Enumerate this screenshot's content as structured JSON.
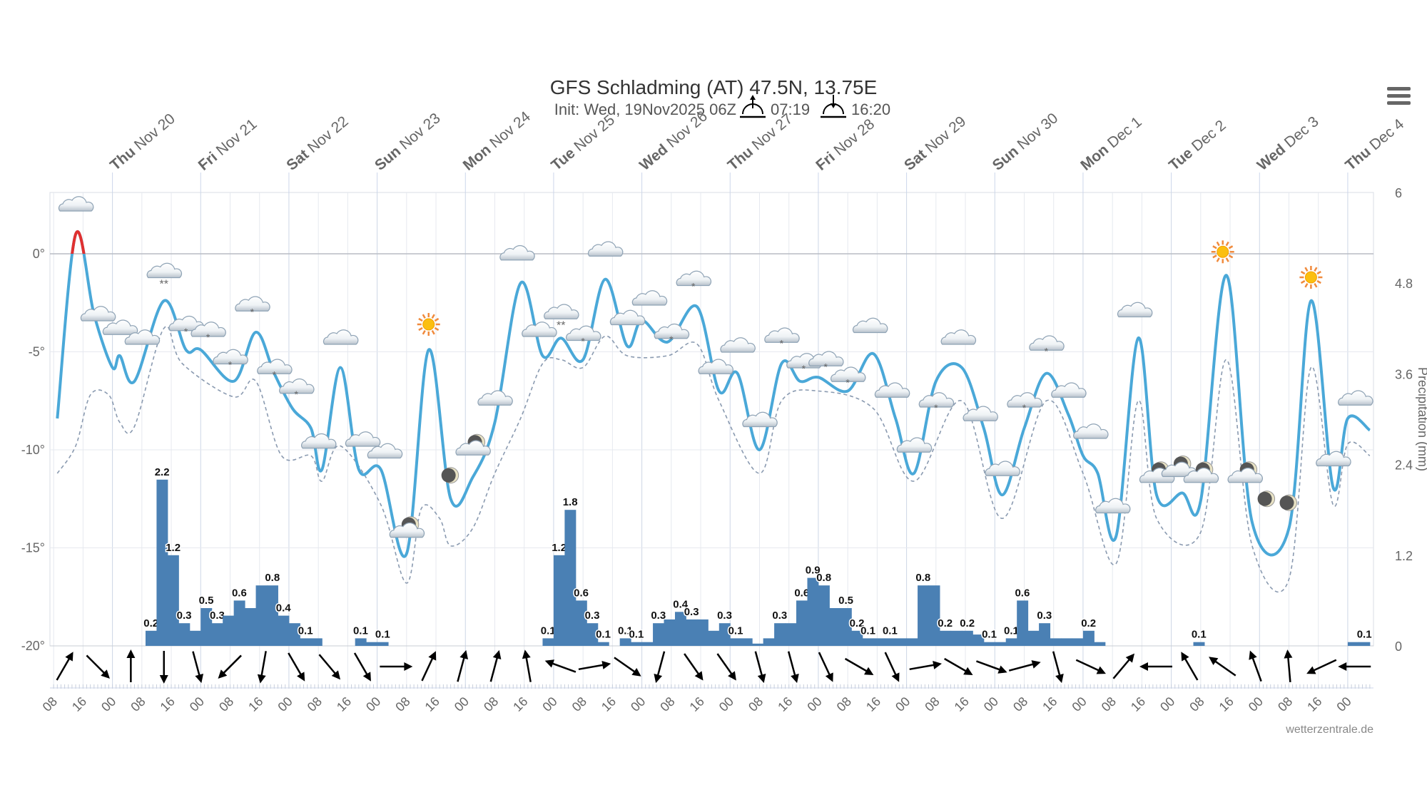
{
  "header": {
    "title": "GFS Schladming (AT) 47.5N, 13.75E",
    "init": "Init: Wed, 19Nov2025 06Z",
    "sunrise": "07:19",
    "sunset": "16:20",
    "menu_icon": "hamburger-menu-icon"
  },
  "watermark": "wetterzentrale.de",
  "colors": {
    "temperature": "#4aa8d8",
    "above_zero": "#e03030",
    "dewpoint": "#8a9ab0",
    "precip": "#4a80b4"
  },
  "chart_data": {
    "type": "line",
    "title": "GFS Schladming (AT) 47.5N, 13.75E",
    "y_left": {
      "ticks": [
        "0°",
        "-5°",
        "-10°",
        "-15°",
        "-20°"
      ],
      "range_deg": [
        -20,
        3.1
      ]
    },
    "y_right": {
      "label": "Precipitation (mm)",
      "ticks": [
        "6",
        "4.8",
        "3.6",
        "2.4",
        "1.2",
        "0"
      ],
      "range_mm": [
        0,
        6
      ]
    },
    "x_range": [
      "11-19 07",
      "12-04 07"
    ],
    "grid": true,
    "day_labels": [
      {
        "day": "Thu",
        "date": "Nov 20"
      },
      {
        "day": "Fri",
        "date": "Nov 21"
      },
      {
        "day": "Sat",
        "date": "Nov 22"
      },
      {
        "day": "Sun",
        "date": "Nov 23"
      },
      {
        "day": "Mon",
        "date": "Nov 24"
      },
      {
        "day": "Tue",
        "date": "Nov 25"
      },
      {
        "day": "Wed",
        "date": "Nov 26"
      },
      {
        "day": "Thu",
        "date": "Nov 27"
      },
      {
        "day": "Fri",
        "date": "Nov 28"
      },
      {
        "day": "Sat",
        "date": "Nov 29"
      },
      {
        "day": "Sun",
        "date": "Nov 30"
      },
      {
        "day": "Mon",
        "date": "Dec 1"
      },
      {
        "day": "Tue",
        "date": "Dec 2"
      },
      {
        "day": "Wed",
        "date": "Dec 3"
      },
      {
        "day": "Thu",
        "date": "Dec 4"
      }
    ],
    "time_tick_labels": [
      "08",
      "16",
      "00",
      "08",
      "16",
      "00",
      "08",
      "16",
      "00",
      "08",
      "16",
      "00",
      "08",
      "16",
      "00",
      "08",
      "16",
      "00",
      "08",
      "16",
      "00",
      "08",
      "16",
      "00",
      "08",
      "16",
      "00",
      "08",
      "16",
      "00",
      "08",
      "16",
      "00",
      "08",
      "16",
      "00",
      "08",
      "16",
      "00",
      "08",
      "16",
      "00",
      "08",
      "16",
      "00"
    ],
    "temperature": [
      [
        "11-19 09",
        -8.4
      ],
      [
        "11-19 14",
        1.0
      ],
      [
        "11-19 19",
        -3.1
      ],
      [
        "11-20 00",
        -5.8
      ],
      [
        "11-20 02",
        -5.2
      ],
      [
        "11-20 06",
        -6.5
      ],
      [
        "11-20 14",
        -2.4
      ],
      [
        "11-20 20",
        -4.9
      ],
      [
        "11-21 00",
        -4.9
      ],
      [
        "11-21 09",
        -6.5
      ],
      [
        "11-21 15",
        -4.0
      ],
      [
        "11-21 20",
        -6.1
      ],
      [
        "11-22 01",
        -7.9
      ],
      [
        "11-22 06",
        -8.9
      ],
      [
        "11-22 09",
        -11.0
      ],
      [
        "11-22 14",
        -5.8
      ],
      [
        "11-22 19",
        -11.0
      ],
      [
        "11-23 01",
        -11.0
      ],
      [
        "11-23 08",
        -15.3
      ],
      [
        "11-23 14",
        -4.9
      ],
      [
        "11-23 20",
        -12.5
      ],
      [
        "11-24 02",
        -11.4
      ],
      [
        "11-24 08",
        -8.6
      ],
      [
        "11-24 15",
        -1.5
      ],
      [
        "11-24 21",
        -5.2
      ],
      [
        "11-25 02",
        -4.3
      ],
      [
        "11-25 08",
        -5.4
      ],
      [
        "11-25 14",
        -1.3
      ],
      [
        "11-25 20",
        -4.7
      ],
      [
        "11-26 00",
        -3.4
      ],
      [
        "11-26 07",
        -4.5
      ],
      [
        "11-26 15",
        -2.7
      ],
      [
        "11-26 21",
        -7.0
      ],
      [
        "11-27 02",
        -6.1
      ],
      [
        "11-27 08",
        -10.0
      ],
      [
        "11-27 14",
        -5.6
      ],
      [
        "11-27 19",
        -6.5
      ],
      [
        "11-28 00",
        -6.3
      ],
      [
        "11-28 08",
        -7.0
      ],
      [
        "11-28 15",
        -5.1
      ],
      [
        "11-28 21",
        -8.4
      ],
      [
        "11-29 02",
        -11.2
      ],
      [
        "11-29 08",
        -6.5
      ],
      [
        "11-29 15",
        -5.8
      ],
      [
        "11-29 21",
        -8.9
      ],
      [
        "11-30 02",
        -12.3
      ],
      [
        "11-30 08",
        -8.9
      ],
      [
        "11-30 14",
        -6.1
      ],
      [
        "11-30 20",
        -8.2
      ],
      [
        "12-01 00",
        -10.3
      ],
      [
        "12-01 04",
        -11.2
      ],
      [
        "12-01 09",
        -14.4
      ],
      [
        "12-01 15",
        -4.3
      ],
      [
        "12-01 20",
        -12.3
      ],
      [
        "12-02 03",
        -12.2
      ],
      [
        "12-02 08",
        -12.6
      ],
      [
        "12-02 15",
        -1.1
      ],
      [
        "12-02 22",
        -13.7
      ],
      [
        "12-03 08",
        -14.0
      ],
      [
        "12-03 14",
        -2.4
      ],
      [
        "12-03 20",
        -11.9
      ],
      [
        "12-04 00",
        -8.4
      ],
      [
        "12-04 06",
        -9.0
      ]
    ],
    "dewpoint": [
      [
        "11-19 09",
        -11.2
      ],
      [
        "11-19 14",
        -9.8
      ],
      [
        "11-19 18",
        -7.2
      ],
      [
        "11-19 23",
        -7.2
      ],
      [
        "11-20 02",
        -8.6
      ],
      [
        "11-20 06",
        -8.8
      ],
      [
        "11-20 14",
        -3.8
      ],
      [
        "11-20 19",
        -5.6
      ],
      [
        "11-21 09",
        -7.3
      ],
      [
        "11-21 15",
        -6.5
      ],
      [
        "11-21 22",
        -10.3
      ],
      [
        "11-22 06",
        -10.3
      ],
      [
        "11-22 09",
        -11.6
      ],
      [
        "11-22 14",
        -9.8
      ],
      [
        "11-23 01",
        -12.8
      ],
      [
        "11-23 08",
        -16.8
      ],
      [
        "11-23 12",
        -13.0
      ],
      [
        "11-23 17",
        -13.5
      ],
      [
        "11-23 20",
        -14.9
      ],
      [
        "11-24 02",
        -14.0
      ],
      [
        "11-24 08",
        -11.2
      ],
      [
        "11-24 15",
        -8.4
      ],
      [
        "11-24 21",
        -5.6
      ],
      [
        "11-25 02",
        -5.4
      ],
      [
        "11-25 08",
        -5.8
      ],
      [
        "11-25 14",
        -4.2
      ],
      [
        "11-25 20",
        -5.2
      ],
      [
        "11-26 07",
        -5.2
      ],
      [
        "11-26 15",
        -4.6
      ],
      [
        "11-26 21",
        -7.5
      ],
      [
        "11-27 08",
        -11.2
      ],
      [
        "11-27 14",
        -7.5
      ],
      [
        "11-28 00",
        -7.0
      ],
      [
        "11-28 15",
        -7.9
      ],
      [
        "11-29 02",
        -11.6
      ],
      [
        "11-29 15",
        -7.5
      ],
      [
        "11-30 02",
        -13.5
      ],
      [
        "11-30 14",
        -7.5
      ],
      [
        "12-01 00",
        -11.2
      ],
      [
        "12-01 09",
        -15.8
      ],
      [
        "12-01 15",
        -7.5
      ],
      [
        "12-01 20",
        -13.5
      ],
      [
        "12-02 08",
        -14.2
      ],
      [
        "12-02 15",
        -5.4
      ],
      [
        "12-02 22",
        -14.9
      ],
      [
        "12-03 08",
        -16.6
      ],
      [
        "12-03 14",
        -5.8
      ],
      [
        "12-03 20",
        -12.8
      ],
      [
        "12-04 00",
        -9.7
      ],
      [
        "12-04 06",
        -10.3
      ]
    ],
    "precipitation": [
      [
        "11-20 09",
        0.2,
        "0.2"
      ],
      [
        "11-20 12",
        2.2,
        "2.2"
      ],
      [
        "11-20 15",
        1.2,
        "1.2"
      ],
      [
        "11-20 18",
        0.3,
        "0.3"
      ],
      [
        "11-20 21",
        0.2,
        ""
      ],
      [
        "11-21 00",
        0.5,
        "0.5"
      ],
      [
        "11-21 03",
        0.3,
        "0.3"
      ],
      [
        "11-21 06",
        0.4,
        ""
      ],
      [
        "11-21 09",
        0.6,
        "0.6"
      ],
      [
        "11-21 12",
        0.5,
        ""
      ],
      [
        "11-21 15",
        0.8,
        ""
      ],
      [
        "11-21 18",
        0.8,
        "0.8"
      ],
      [
        "11-21 21",
        0.4,
        "0.4"
      ],
      [
        "11-22 00",
        0.3,
        ""
      ],
      [
        "11-22 03",
        0.1,
        "0.1"
      ],
      [
        "11-22 06",
        0.1,
        ""
      ],
      [
        "11-22 18",
        0.1,
        "0.1"
      ],
      [
        "11-22 21",
        0.05,
        ""
      ],
      [
        "11-23 00",
        0.05,
        "0.1"
      ],
      [
        "11-24 21",
        0.1,
        "0.1"
      ],
      [
        "11-25 00",
        1.2,
        "1.2"
      ],
      [
        "11-25 03",
        1.8,
        "1.8"
      ],
      [
        "11-25 06",
        0.6,
        "0.6"
      ],
      [
        "11-25 09",
        0.3,
        "0.3"
      ],
      [
        "11-25 12",
        0.05,
        "0.1"
      ],
      [
        "11-25 18",
        0.1,
        "0.1"
      ],
      [
        "11-25 21",
        0.05,
        "0.1"
      ],
      [
        "11-26 00",
        0.05,
        ""
      ],
      [
        "11-26 03",
        0.3,
        "0.3"
      ],
      [
        "11-26 06",
        0.35,
        ""
      ],
      [
        "11-26 09",
        0.45,
        "0.4"
      ],
      [
        "11-26 12",
        0.35,
        "0.3"
      ],
      [
        "11-26 15",
        0.35,
        ""
      ],
      [
        "11-26 18",
        0.2,
        ""
      ],
      [
        "11-26 21",
        0.3,
        "0.3"
      ],
      [
        "11-27 00",
        0.1,
        "0.1"
      ],
      [
        "11-27 03",
        0.1,
        ""
      ],
      [
        "11-27 06",
        0.03,
        ""
      ],
      [
        "11-27 09",
        0.1,
        ""
      ],
      [
        "11-27 12",
        0.3,
        "0.3"
      ],
      [
        "11-27 15",
        0.3,
        ""
      ],
      [
        "11-27 18",
        0.6,
        "0.6"
      ],
      [
        "11-27 21",
        0.9,
        "0.9"
      ],
      [
        "11-28 00",
        0.8,
        "0.8"
      ],
      [
        "11-28 03",
        0.5,
        ""
      ],
      [
        "11-28 06",
        0.5,
        "0.5"
      ],
      [
        "11-28 09",
        0.2,
        "0.2"
      ],
      [
        "11-28 12",
        0.1,
        "0.1"
      ],
      [
        "11-28 15",
        0.1,
        ""
      ],
      [
        "11-28 18",
        0.1,
        "0.1"
      ],
      [
        "11-28 21",
        0.1,
        ""
      ],
      [
        "11-29 00",
        0.1,
        ""
      ],
      [
        "11-29 03",
        0.8,
        "0.8"
      ],
      [
        "11-29 06",
        0.8,
        ""
      ],
      [
        "11-29 09",
        0.2,
        "0.2"
      ],
      [
        "11-29 12",
        0.2,
        ""
      ],
      [
        "11-29 15",
        0.2,
        "0.2"
      ],
      [
        "11-29 18",
        0.15,
        ""
      ],
      [
        "11-29 21",
        0.05,
        "0.1"
      ],
      [
        "11-30 00",
        0.05,
        ""
      ],
      [
        "11-30 03",
        0.1,
        "0.1"
      ],
      [
        "11-30 06",
        0.6,
        "0.6"
      ],
      [
        "11-30 09",
        0.2,
        ""
      ],
      [
        "11-30 12",
        0.3,
        "0.3"
      ],
      [
        "11-30 15",
        0.1,
        ""
      ],
      [
        "11-30 18",
        0.1,
        ""
      ],
      [
        "11-30 21",
        0.1,
        ""
      ],
      [
        "12-01 00",
        0.2,
        "0.2"
      ],
      [
        "12-01 03",
        0.05,
        ""
      ],
      [
        "12-02 06",
        0.05,
        "0.1"
      ],
      [
        "12-04 00",
        0.05,
        ""
      ],
      [
        "12-04 03",
        0.05,
        "0.1"
      ]
    ],
    "wind_directions_deg": [
      30,
      135,
      0,
      180,
      165,
      225,
      190,
      150,
      140,
      150,
      90,
      25,
      15,
      15,
      350,
      290,
      80,
      125,
      195,
      145,
      145,
      165,
      165,
      155,
      120,
      155,
      80,
      120,
      110,
      75,
      165,
      115,
      40,
      270,
      330,
      305,
      340,
      355,
      245,
      270
    ],
    "weather_symbols": [
      [
        "cloud",
        2.4
      ],
      [
        "cloud",
        -3.2
      ],
      [
        "cloud",
        -3.9
      ],
      [
        "cloud",
        -4.4
      ],
      [
        "cloud-snow",
        -1.0
      ],
      [
        "cloud-flurry",
        -3.7
      ],
      [
        "cloud-flurry",
        -4.0
      ],
      [
        "cloud-flurry",
        -5.4
      ],
      [
        "cloud-flurry",
        -2.7
      ],
      [
        "cloud-flurry",
        -5.9
      ],
      [
        "cloud-flurry",
        -6.9
      ],
      [
        "cloud",
        -9.7
      ],
      [
        "cloud",
        -4.4
      ],
      [
        "cloud",
        -9.6
      ],
      [
        "cloud",
        -10.2
      ],
      [
        "moon-cloud",
        -14.1
      ],
      [
        "sun",
        -3.6
      ],
      [
        "moon",
        -11.3
      ],
      [
        "moon-cloud",
        -9.9
      ],
      [
        "cloud",
        -7.5
      ],
      [
        "cloud",
        -0.1
      ],
      [
        "cloud",
        -4.0
      ],
      [
        "cloud-snow",
        -3.1
      ],
      [
        "cloud-flurry",
        -4.2
      ],
      [
        "cloud",
        0.1
      ],
      [
        "cloud",
        -3.4
      ],
      [
        "cloud",
        -2.4
      ],
      [
        "cloud-flurry",
        -4.1
      ],
      [
        "cloud-flurry",
        -1.4
      ],
      [
        "cloud",
        -5.9
      ],
      [
        "cloud",
        -4.8
      ],
      [
        "cloud",
        -8.6
      ],
      [
        "cloud-flurry",
        -4.3
      ],
      [
        "cloud-flurry",
        -5.6
      ],
      [
        "cloud-flurry",
        -5.5
      ],
      [
        "cloud-flurry",
        -6.3
      ],
      [
        "cloud",
        -3.8
      ],
      [
        "cloud",
        -7.1
      ],
      [
        "cloud",
        -9.9
      ],
      [
        "cloud-flurry",
        -7.6
      ],
      [
        "cloud",
        -4.4
      ],
      [
        "cloud",
        -8.3
      ],
      [
        "cloud",
        -11.1
      ],
      [
        "cloud-flurry",
        -7.6
      ],
      [
        "cloud-flurry",
        -4.7
      ],
      [
        "cloud",
        -7.1
      ],
      [
        "cloud",
        -9.2
      ],
      [
        "cloud",
        -13.0
      ],
      [
        "cloud",
        -3.0
      ],
      [
        "moon-cloud",
        -11.3
      ],
      [
        "moon-cloud",
        -11.0
      ],
      [
        "moon-cloud",
        -11.3
      ],
      [
        "sun",
        0.1
      ],
      [
        "moon-cloud",
        -11.3
      ],
      [
        "moon",
        -12.5
      ],
      [
        "moon",
        -12.7
      ],
      [
        "sun",
        -1.2
      ],
      [
        "cloud",
        -10.6
      ],
      [
        "cloud",
        -7.5
      ]
    ]
  }
}
